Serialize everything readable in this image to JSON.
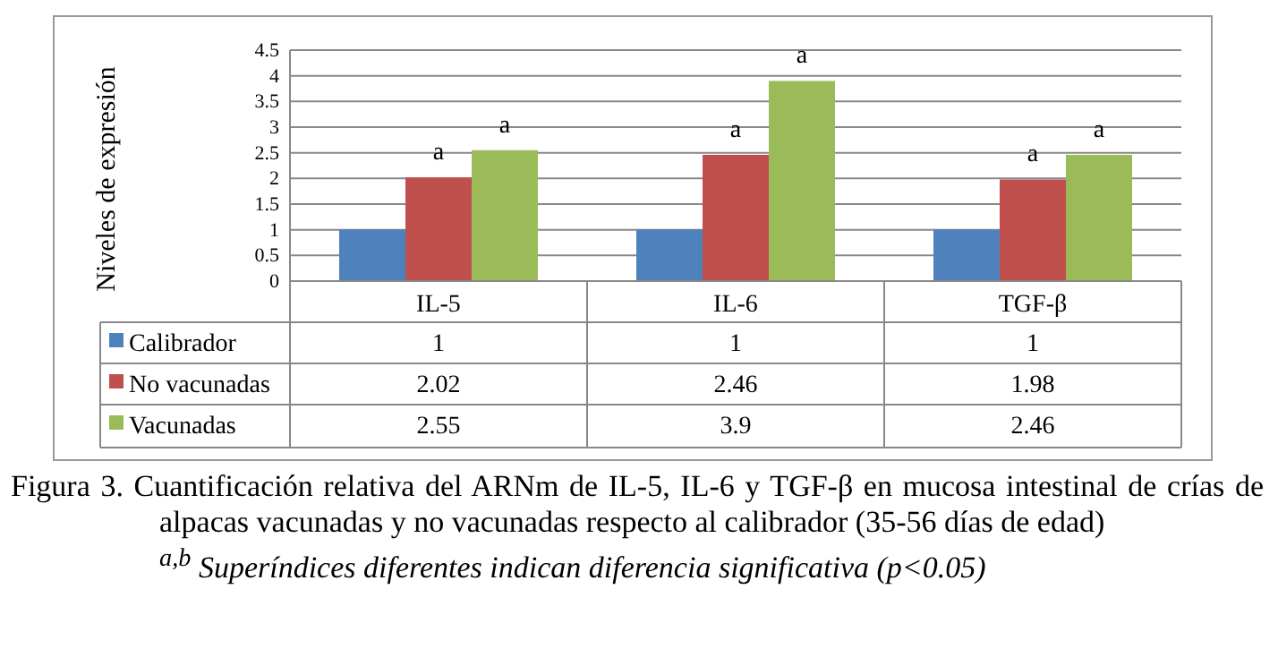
{
  "chart_data": {
    "type": "bar",
    "ylabel": "Niveles de expresión",
    "categories": [
      "IL-5",
      "IL-6",
      "TGF-β"
    ],
    "series": [
      {
        "name": "Calibrador",
        "color": "#4f81bd",
        "values": [
          1,
          1,
          1
        ]
      },
      {
        "name": "No vacunadas",
        "color": "#c0504d",
        "values": [
          2.02,
          2.46,
          1.98
        ]
      },
      {
        "name": "Vacunadas",
        "color": "#9bbb59",
        "values": [
          2.55,
          3.9,
          2.46
        ]
      }
    ],
    "ylim": [
      0,
      4.5
    ],
    "yticks": [
      0,
      0.5,
      1,
      1.5,
      2,
      2.5,
      3,
      3.5,
      4,
      4.5
    ],
    "grid": "y",
    "legend": "bottom",
    "data_labels": true,
    "annotations": [
      "a",
      "a",
      "a",
      "a",
      "a",
      "a",
      "Figura 3. Cuantificación relativa del ARNm de IL-5, IL-6 y TGF-β en mucosa intestinal de crías de alpacas vacunadas y no vacunadas respecto al calibrador (35-56 días de edad)",
      "$^{a,b}$ Superíndices diferentes indican diferencia significativa (p<0.05)"
    ]
  }
}
